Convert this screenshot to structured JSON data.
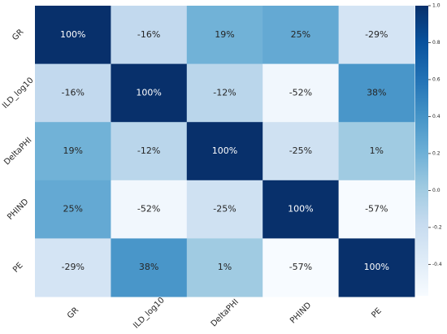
{
  "chart_data": {
    "type": "heatmap",
    "title": "",
    "xlabel": "",
    "ylabel": "",
    "labels": [
      "GR",
      "ILD_log10",
      "DeltaPHI",
      "PHIND",
      "PE"
    ],
    "values": [
      [
        1.0,
        -0.16,
        0.19,
        0.25,
        -0.29
      ],
      [
        -0.16,
        1.0,
        -0.12,
        -0.52,
        0.38
      ],
      [
        0.19,
        -0.12,
        1.0,
        -0.25,
        0.01
      ],
      [
        0.25,
        -0.52,
        -0.25,
        1.0,
        -0.57
      ],
      [
        -0.29,
        0.38,
        0.01,
        -0.57,
        1.0
      ]
    ],
    "annotations": [
      [
        "100%",
        "-16%",
        "19%",
        "25%",
        "-29%"
      ],
      [
        "-16%",
        "100%",
        "-12%",
        "-52%",
        "38%"
      ],
      [
        "19%",
        "-12%",
        "100%",
        "-25%",
        "1%"
      ],
      [
        "25%",
        "-52%",
        "-25%",
        "100%",
        "-57%"
      ],
      [
        "-29%",
        "38%",
        "1%",
        "-57%",
        "100%"
      ]
    ],
    "colormap": "Blues",
    "vmin": -0.57,
    "vmax": 1.0,
    "colorbar": {
      "ticks": [
        1.0,
        0.8,
        0.6,
        0.4,
        0.2,
        0.0,
        -0.2,
        -0.4
      ],
      "tick_labels": [
        "1.0",
        "0.8",
        "0.6",
        "0.4",
        "0.2",
        "0.0",
        "-0.2",
        "-0.4"
      ],
      "placement": "right"
    }
  }
}
